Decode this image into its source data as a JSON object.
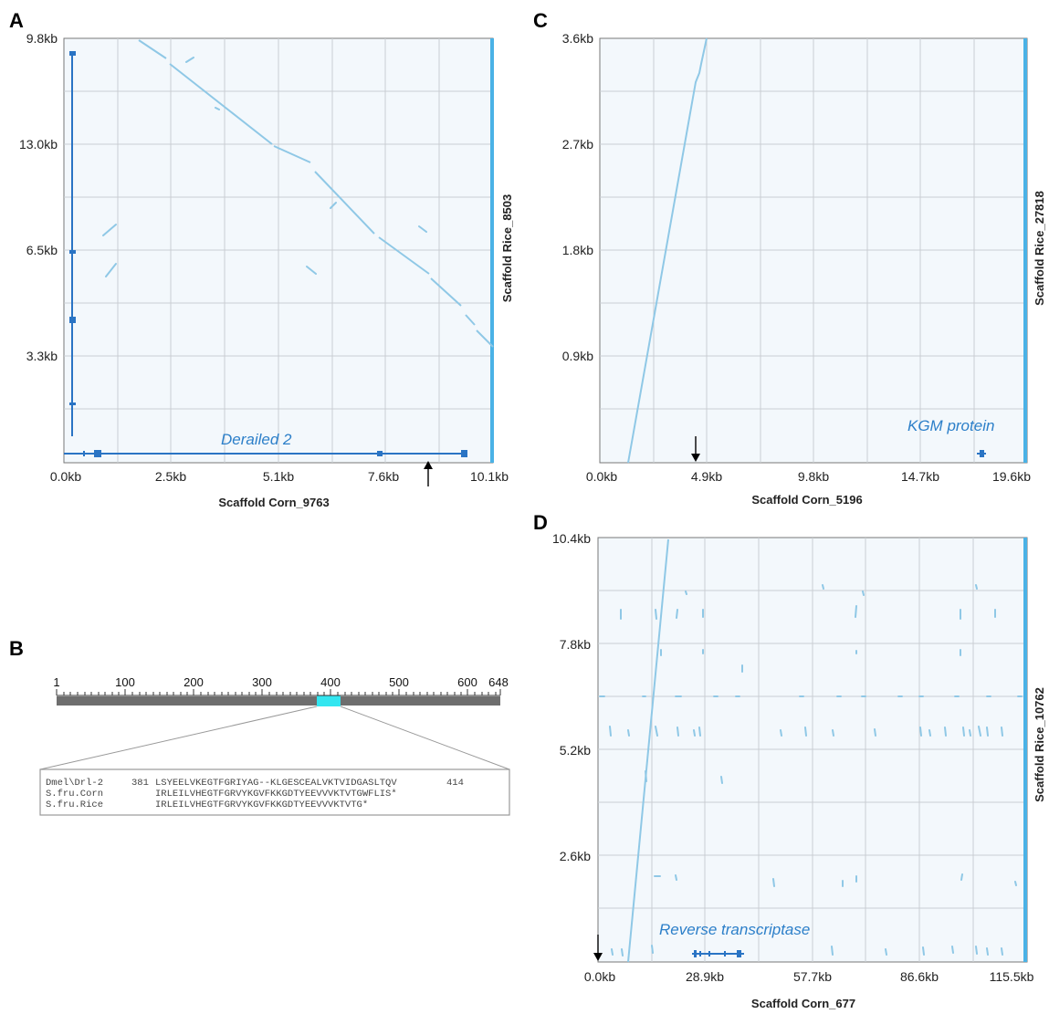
{
  "panels": {
    "A": {
      "letter": "A",
      "xlabel": "Scaffold Corn_9763",
      "ylabel": "Scaffold Rice_8503",
      "xticks": [
        "0.0kb",
        "2.5kb",
        "5.1kb",
        "7.6kb",
        "10.1kb"
      ],
      "yticks": [
        "9.8kb",
        "13.0kb",
        "6.5kb",
        "3.3kb"
      ],
      "gene_label": "Derailed 2"
    },
    "B": {
      "letter": "B",
      "scale_labels": [
        "1",
        "100",
        "200",
        "300",
        "400",
        "500",
        "600",
        "648"
      ],
      "alignment": [
        {
          "name": "Dmel\\Drl-2",
          "start": "381",
          "seq": "LSYEELVKEGTFGRIYAG--KLGESCEALVKTVIDGASLTQV",
          "end": "414"
        },
        {
          "name": "S.fru.Corn",
          "start": "",
          "seq": "IRLEILVHEGTFGRVYKGVFKKGDTYEEVVVKTVTGWFLIS*",
          "end": ""
        },
        {
          "name": "S.fru.Rice",
          "start": "",
          "seq": "IRLEILVHEGTFGRVYKGVFKKGDTYEEVVVKTVTG*",
          "end": ""
        }
      ]
    },
    "C": {
      "letter": "C",
      "xlabel": "Scaffold Corn_5196",
      "ylabel": "Scaffold Rice_27818",
      "xticks": [
        "0.0kb",
        "4.9kb",
        "9.8kb",
        "14.7kb",
        "19.6kb"
      ],
      "yticks": [
        "3.6kb",
        "2.7kb",
        "1.8kb",
        "0.9kb"
      ],
      "gene_label": "KGM protein"
    },
    "D": {
      "letter": "D",
      "xlabel": "Scaffold Corn_677",
      "ylabel": "Scaffold Rice_10762",
      "xticks": [
        "0.0kb",
        "28.9kb",
        "57.7kb",
        "86.6kb",
        "115.5kb"
      ],
      "yticks": [
        "10.4kb",
        "7.8kb",
        "5.2kb",
        "2.6kb"
      ],
      "gene_label": "Reverse transcriptase"
    }
  },
  "colors": {
    "dot": "#8fc8e6",
    "gene": "#2a74c4",
    "highlight": "#33e6f0",
    "bar": "#6e6e6e"
  }
}
